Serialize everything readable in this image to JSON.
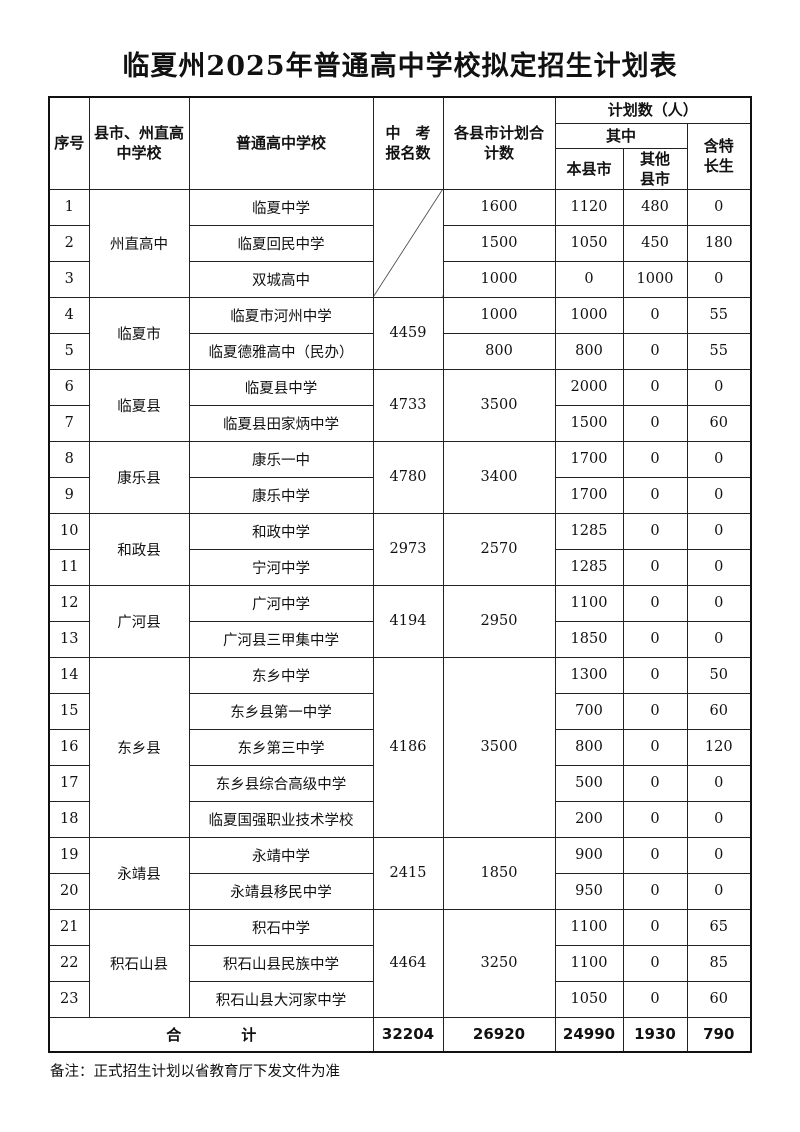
{
  "title": "临夏州2025年普通高中学校拟定招生计划表",
  "headers": {
    "seq": "序号",
    "county": "县市、州直高中学校",
    "school": "普通高中学校",
    "exam": "中　考报名数",
    "plan_total": "各县市计划合计数",
    "plan": "计划数（人）",
    "of_which": "其中",
    "local": "本县市",
    "other": "其他县市",
    "special": "含特长生"
  },
  "groups": [
    {
      "name": "州直高中",
      "exam": null,
      "plan": null,
      "schools": [
        {
          "no": "1",
          "name": "临夏中学",
          "plan": "1600",
          "local": "1120",
          "other": "480",
          "special": "0"
        },
        {
          "no": "2",
          "name": "临夏回民中学",
          "plan": "1500",
          "local": "1050",
          "other": "450",
          "special": "180"
        },
        {
          "no": "3",
          "name": "双城高中",
          "plan": "1000",
          "local": "0",
          "other": "1000",
          "special": "0"
        }
      ]
    },
    {
      "name": "临夏市",
      "exam": "4459",
      "plan": null,
      "schools": [
        {
          "no": "4",
          "name": "临夏市河州中学",
          "plan": "1000",
          "local": "1000",
          "other": "0",
          "special": "55"
        },
        {
          "no": "5",
          "name": "临夏德雅高中（民办）",
          "plan": "800",
          "local": "800",
          "other": "0",
          "special": "55"
        }
      ]
    },
    {
      "name": "临夏县",
      "exam": "4733",
      "plan": "3500",
      "schools": [
        {
          "no": "6",
          "name": "临夏县中学",
          "local": "2000",
          "other": "0",
          "special": "0"
        },
        {
          "no": "7",
          "name": "临夏县田家炳中学",
          "local": "1500",
          "other": "0",
          "special": "60"
        }
      ]
    },
    {
      "name": "康乐县",
      "exam": "4780",
      "plan": "3400",
      "schools": [
        {
          "no": "8",
          "name": "康乐一中",
          "local": "1700",
          "other": "0",
          "special": "0"
        },
        {
          "no": "9",
          "name": "康乐中学",
          "local": "1700",
          "other": "0",
          "special": "0"
        }
      ]
    },
    {
      "name": "和政县",
      "exam": "2973",
      "plan": "2570",
      "schools": [
        {
          "no": "10",
          "name": "和政中学",
          "local": "1285",
          "other": "0",
          "special": "0"
        },
        {
          "no": "11",
          "name": "宁河中学",
          "local": "1285",
          "other": "0",
          "special": "0"
        }
      ]
    },
    {
      "name": "广河县",
      "exam": "4194",
      "plan": "2950",
      "schools": [
        {
          "no": "12",
          "name": "广河中学",
          "local": "1100",
          "other": "0",
          "special": "0"
        },
        {
          "no": "13",
          "name": "广河县三甲集中学",
          "local": "1850",
          "other": "0",
          "special": "0"
        }
      ]
    },
    {
      "name": "东乡县",
      "exam": "4186",
      "plan": "3500",
      "schools": [
        {
          "no": "14",
          "name": "东乡中学",
          "local": "1300",
          "other": "0",
          "special": "50"
        },
        {
          "no": "15",
          "name": "东乡县第一中学",
          "local": "700",
          "other": "0",
          "special": "60"
        },
        {
          "no": "16",
          "name": "东乡第三中学",
          "local": "800",
          "other": "0",
          "special": "120"
        },
        {
          "no": "17",
          "name": "东乡县综合高级中学",
          "local": "500",
          "other": "0",
          "special": "0"
        },
        {
          "no": "18",
          "name": "临夏国强职业技术学校",
          "local": "200",
          "other": "0",
          "special": "0"
        }
      ]
    },
    {
      "name": "永靖县",
      "exam": "2415",
      "plan": "1850",
      "schools": [
        {
          "no": "19",
          "name": "永靖中学",
          "local": "900",
          "other": "0",
          "special": "0"
        },
        {
          "no": "20",
          "name": "永靖县移民中学",
          "local": "950",
          "other": "0",
          "special": "0"
        }
      ]
    },
    {
      "name": "积石山县",
      "exam": "4464",
      "plan": "3250",
      "schools": [
        {
          "no": "21",
          "name": "积石中学",
          "local": "1100",
          "other": "0",
          "special": "65"
        },
        {
          "no": "22",
          "name": "积石山县民族中学",
          "local": "1100",
          "other": "0",
          "special": "85"
        },
        {
          "no": "23",
          "name": "积石山县大河家中学",
          "local": "1050",
          "other": "0",
          "special": "60"
        }
      ]
    }
  ],
  "total": {
    "label": "合　　　　计",
    "exam": "32204",
    "plan": "26920",
    "local": "24990",
    "other": "1930",
    "special": "790"
  },
  "note": "备注：正式招生计划以省教育厅下发文件为准"
}
